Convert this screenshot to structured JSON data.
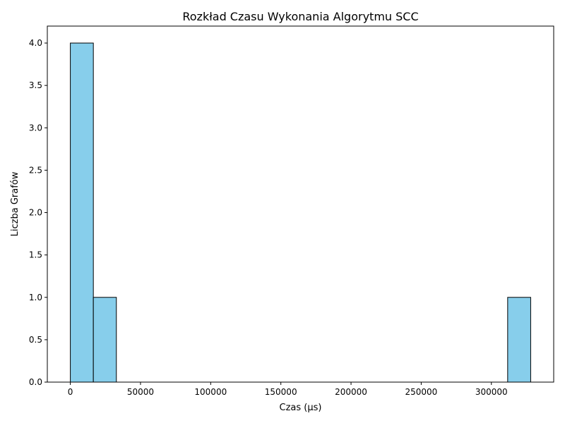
{
  "chart_data": {
    "type": "bar",
    "title": "Rozkład Czasu Wykonania Algorytmu SCC",
    "xlabel": "Czas (µs)",
    "ylabel": "Liczba Grafów",
    "bins": [
      {
        "start": 0,
        "end": 16400,
        "count": 4
      },
      {
        "start": 16400,
        "end": 32800,
        "count": 1
      },
      {
        "start": 311600,
        "end": 328000,
        "count": 1
      }
    ],
    "xlim": [
      -16400,
      344400
    ],
    "ylim": [
      0,
      4.2
    ],
    "x_ticks": [
      0,
      50000,
      100000,
      150000,
      200000,
      250000,
      300000
    ],
    "y_ticks": [
      0.0,
      0.5,
      1.0,
      1.5,
      2.0,
      2.5,
      3.0,
      3.5,
      4.0
    ],
    "grid": false,
    "colors": {
      "bar_fill": "#87CEEB",
      "bar_edge": "#000000"
    }
  }
}
